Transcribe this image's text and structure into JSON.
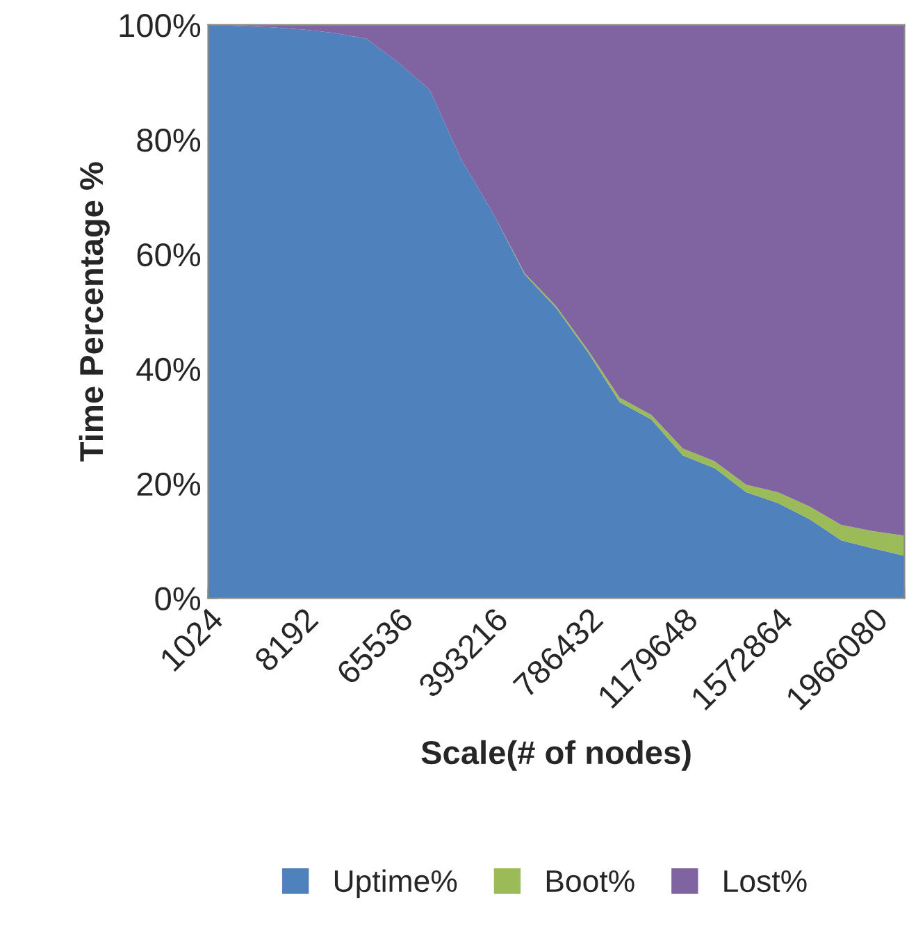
{
  "chart_data": {
    "type": "area",
    "stacked": true,
    "xlabel": "Scale(# of nodes)",
    "ylabel": "Time Percentage %",
    "categories": [
      "1024",
      null,
      null,
      "8192",
      null,
      null,
      "65536",
      null,
      null,
      "393216",
      null,
      null,
      "786432",
      null,
      null,
      "1179648",
      null,
      null,
      "1572864",
      null,
      null,
      "1966080",
      null
    ],
    "series": [
      {
        "name": "Uptime%",
        "color": "#4f81bd",
        "values": [
          100,
          99.8,
          99.6,
          99.2,
          98.6,
          97.6,
          93.5,
          88.7,
          76.5,
          67.2,
          56.5,
          50.6,
          42.9,
          34.2,
          31.2,
          24.9,
          22.7,
          18.5,
          16.6,
          13.8,
          10.1,
          8.7,
          7.4
        ]
      },
      {
        "name": "Boot%",
        "color": "#9bbb59",
        "values": [
          0,
          0,
          0,
          0,
          0,
          0,
          0,
          0,
          0,
          0,
          0.2,
          0.3,
          0.4,
          0.8,
          0.8,
          1.2,
          1.2,
          1.3,
          1.9,
          2.2,
          2.7,
          3.0,
          3.5
        ]
      },
      {
        "name": "Lost%",
        "color": "#8064a2",
        "values": [
          0,
          0.2,
          0.4,
          0.8,
          1.4,
          2.4,
          6.5,
          11.3,
          23.5,
          32.8,
          43.3,
          49.1,
          56.7,
          65.0,
          68.0,
          73.9,
          76.1,
          80.2,
          81.5,
          84.0,
          87.2,
          88.3,
          89.1
        ]
      }
    ],
    "ylim": [
      0,
      100
    ],
    "yticks": [
      {
        "value": 0,
        "label": "0%"
      },
      {
        "value": 20,
        "label": "20%"
      },
      {
        "value": 40,
        "label": "40%"
      },
      {
        "value": 60,
        "label": "60%"
      },
      {
        "value": 80,
        "label": "80%"
      },
      {
        "value": 100,
        "label": "100%"
      }
    ],
    "grid": false,
    "legend": "bottom"
  }
}
